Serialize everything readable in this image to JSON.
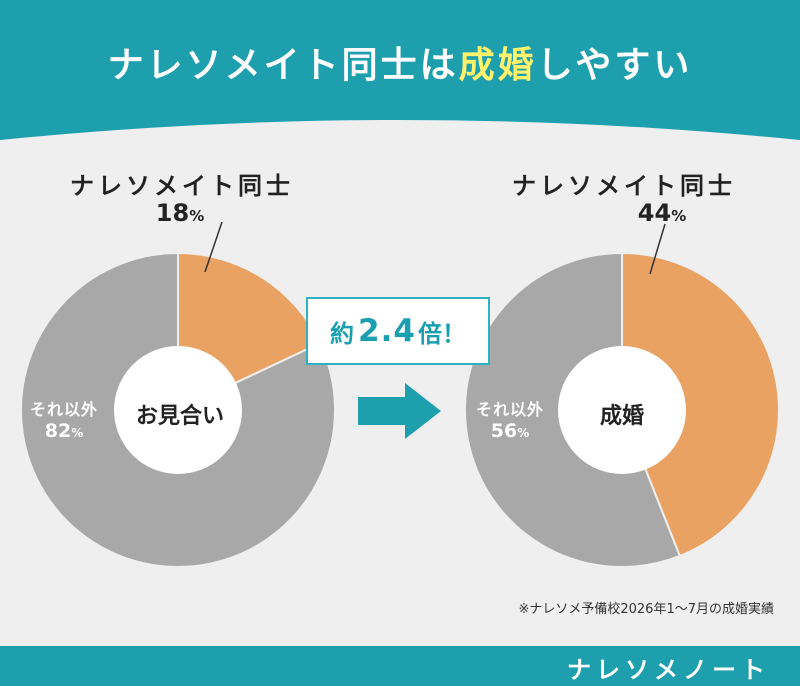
{
  "title": {
    "part1": "ナレソメイト同士は",
    "highlight": "成婚",
    "part2": "しやすい"
  },
  "colors": {
    "teal": "#1e9fae",
    "orange": "#eaa263",
    "gray": "#a8a8a8",
    "accent_text": "#1a9fb0",
    "title_highlight": "#fff36b",
    "background": "#efefef"
  },
  "chart_data": [
    {
      "type": "pie",
      "center_label": "お見合い",
      "slices": [
        {
          "label": "ナレソメイト同士",
          "value": 18,
          "display": "18",
          "unit": "%",
          "color": "#eaa263"
        },
        {
          "label": "それ以外",
          "value": 82,
          "display": "82",
          "unit": "%",
          "color": "#a8a8a8"
        }
      ]
    },
    {
      "type": "pie",
      "center_label": "成婚",
      "slices": [
        {
          "label": "ナレソメイト同士",
          "value": 44,
          "display": "44",
          "unit": "%",
          "color": "#eaa263"
        },
        {
          "label": "それ以外",
          "value": 56,
          "display": "56",
          "unit": "%",
          "color": "#a8a8a8"
        }
      ]
    }
  ],
  "ratio": {
    "prefix": "約",
    "value": "2.4",
    "suffix": "倍！"
  },
  "arrow_icon": "right-arrow-icon",
  "footnote": "※ナレソメ予備校2026年1〜7月の成婚実績",
  "brand": "ナレソメノート"
}
